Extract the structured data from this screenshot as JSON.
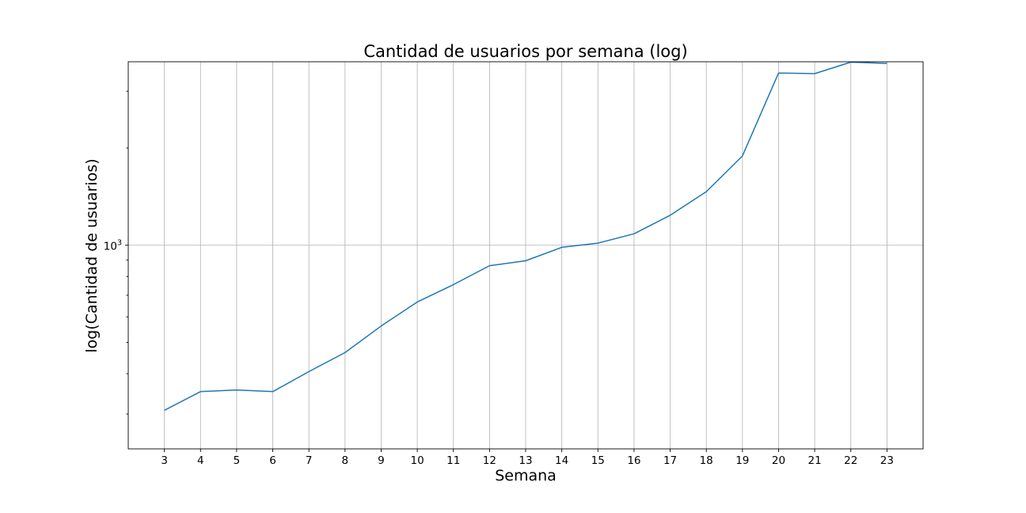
{
  "chart_data": {
    "type": "line",
    "title": "Cantidad de usuarios por semana (log)",
    "xlabel": "Semana",
    "ylabel": "log(Cantidad de usuarios)",
    "yscale": "log",
    "grid": true,
    "xlim": [
      2,
      24
    ],
    "ylim": [
      234,
      3700
    ],
    "x": [
      3,
      4,
      5,
      6,
      7,
      8,
      9,
      10,
      11,
      12,
      13,
      14,
      15,
      16,
      17,
      18,
      19,
      20,
      21,
      22,
      23
    ],
    "xtick_labels": [
      "3",
      "4",
      "5",
      "6",
      "7",
      "8",
      "9",
      "10",
      "11",
      "12",
      "13",
      "14",
      "15",
      "16",
      "17",
      "18",
      "19",
      "20",
      "21",
      "22",
      "23"
    ],
    "yticks": [
      1000
    ],
    "ytick_labels": [
      {
        "base": "10",
        "exp": "3"
      }
    ],
    "series": [
      {
        "name": "",
        "color": "#1f77b4",
        "values": [
          308,
          352,
          356,
          352,
          406,
          465,
          562,
          667,
          755,
          864,
          895,
          985,
          1015,
          1085,
          1238,
          1465,
          1890,
          3415,
          3400,
          3690,
          3655
        ]
      }
    ]
  }
}
